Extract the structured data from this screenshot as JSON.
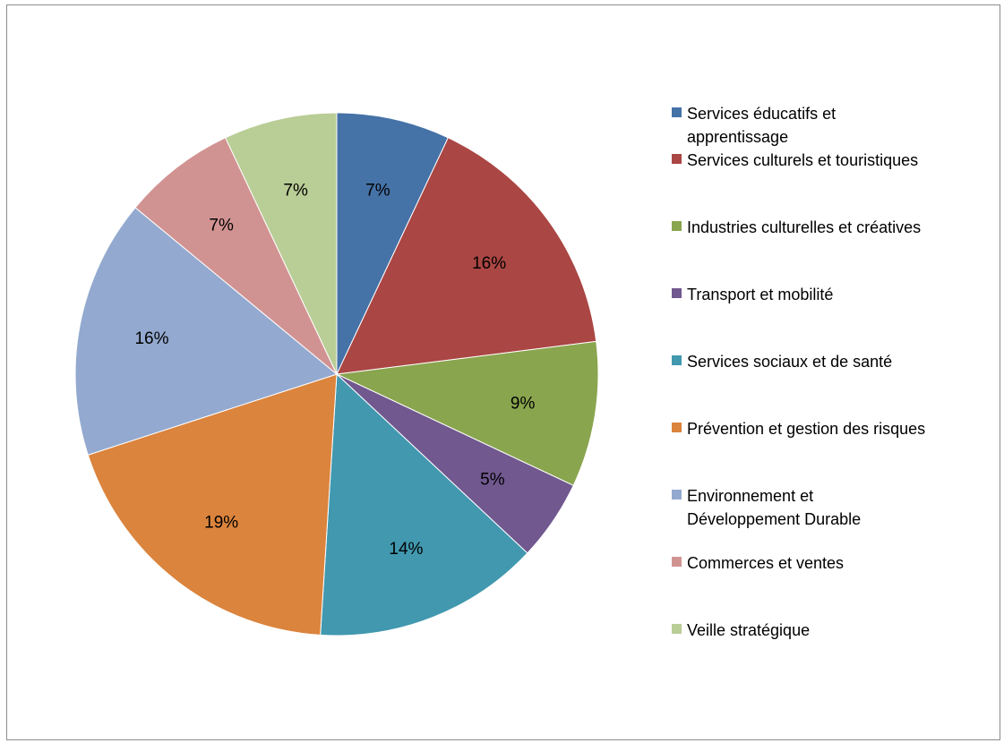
{
  "chart_data": {
    "type": "pie",
    "title": "",
    "start_angle_deg": 0,
    "direction": "clockwise",
    "legend_position": "right",
    "slices": [
      {
        "label": "Services éducatifs et\napprentissage",
        "value": 7,
        "value_label": "7%",
        "color": "#4572A7"
      },
      {
        "label": "Services culturels et touristiques",
        "value": 16,
        "value_label": "16%",
        "color": "#AA4643"
      },
      {
        "label": "Industries culturelles et créatives",
        "value": 9,
        "value_label": "9%",
        "color": "#89A54E"
      },
      {
        "label": "Transport et mobilité",
        "value": 5,
        "value_label": "5%",
        "color": "#71588F"
      },
      {
        "label": "Services sociaux et de santé",
        "value": 14,
        "value_label": "14%",
        "color": "#4198AF"
      },
      {
        "label": "Prévention et gestion des risques",
        "value": 19,
        "value_label": "19%",
        "color": "#DB843D"
      },
      {
        "label": "Environnement et\nDéveloppement Durable",
        "value": 16,
        "value_label": "16%",
        "color": "#93A9CF"
      },
      {
        "label": "Commerces et ventes",
        "value": 7,
        "value_label": "7%",
        "color": "#D19392"
      },
      {
        "label": "Veille stratégique",
        "value": 7,
        "value_label": "7%",
        "color": "#B9CD96"
      }
    ]
  }
}
